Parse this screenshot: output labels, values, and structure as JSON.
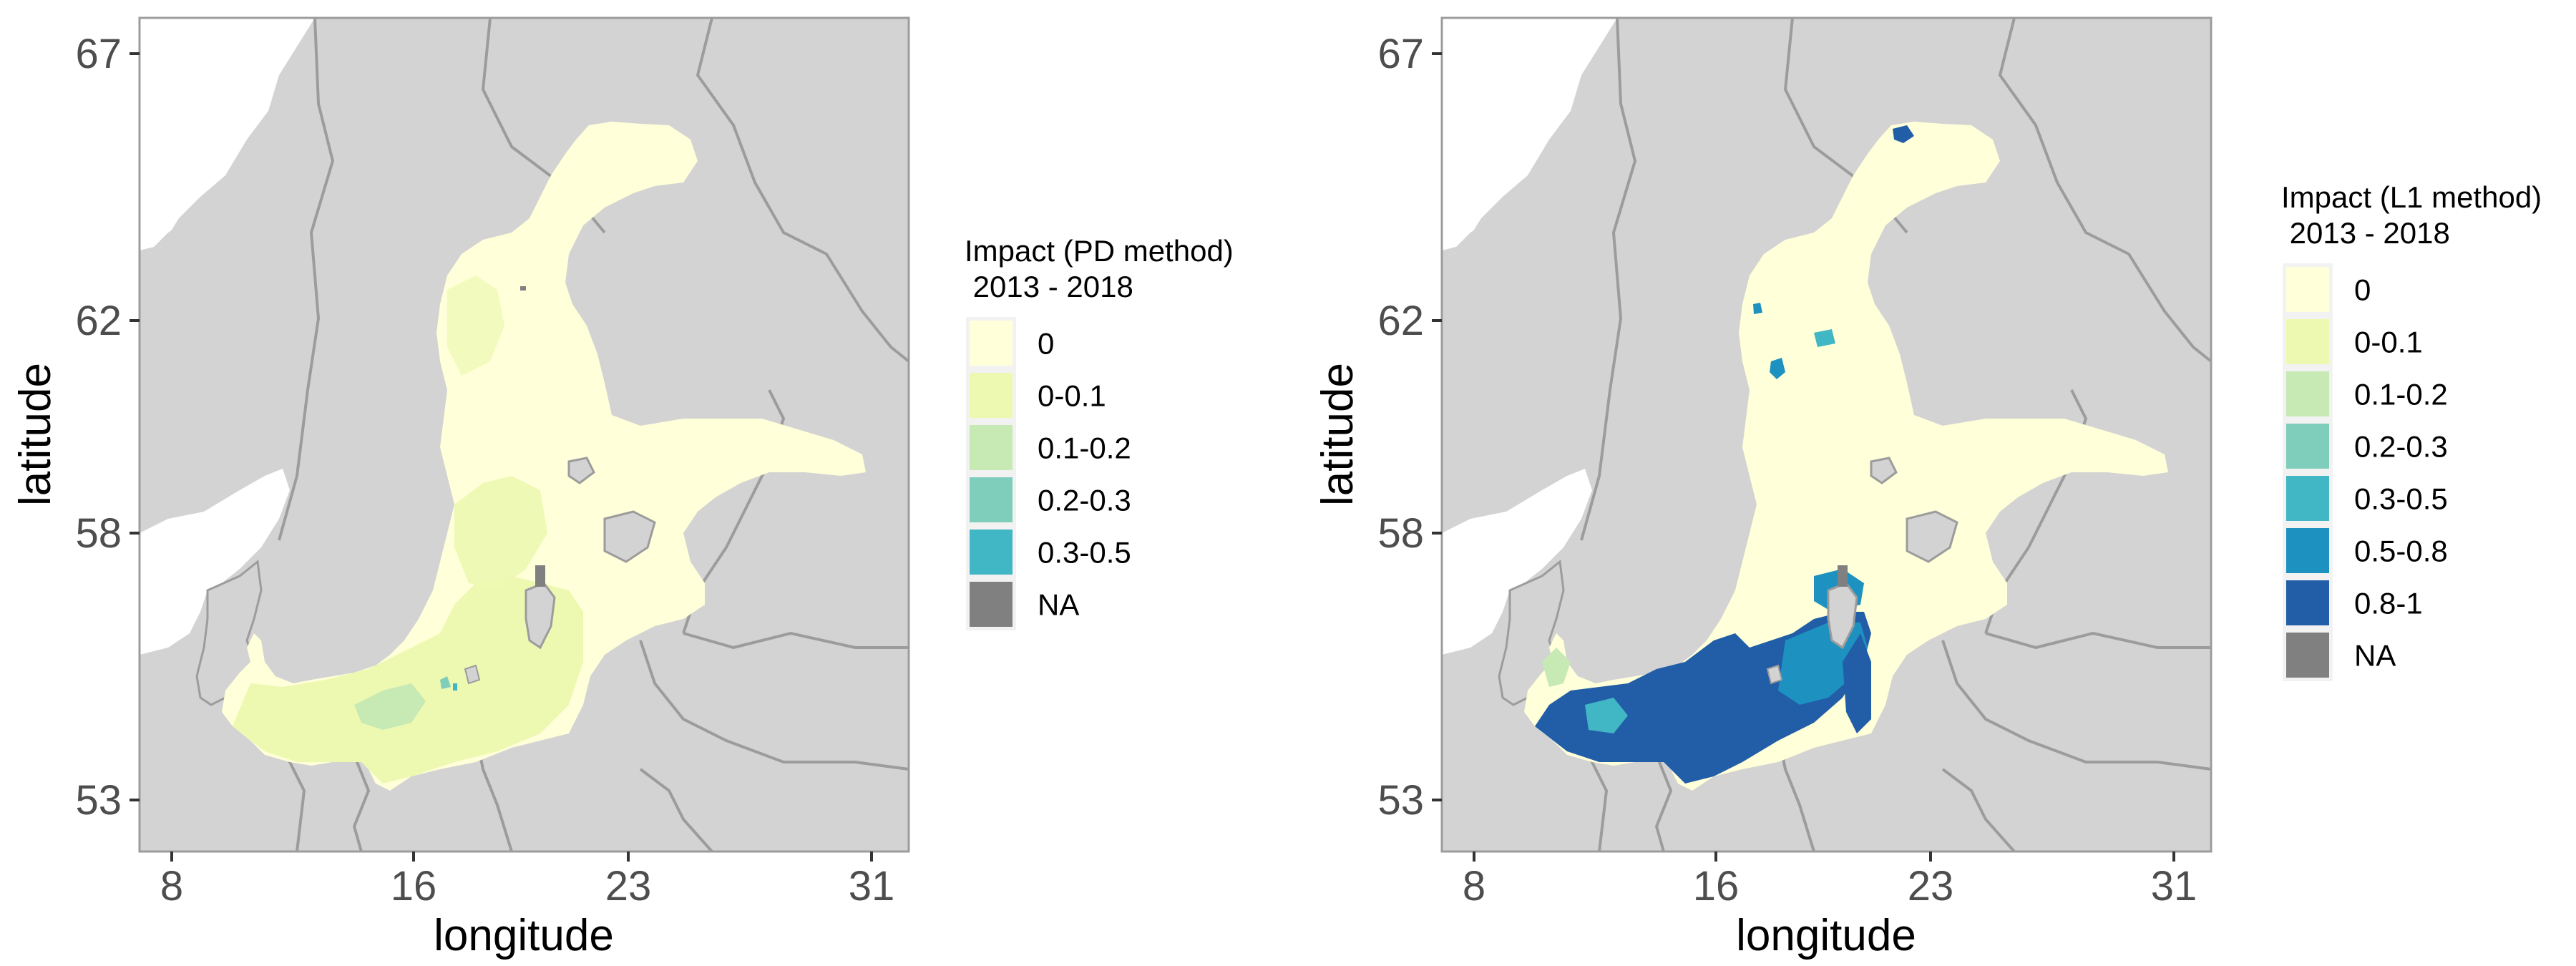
{
  "colors": {
    "land": "#d3d3d3",
    "border": "#9c9c9c",
    "sea_white": "#ffffff",
    "na": "#808080",
    "legend_bg": "#f2f2f2"
  },
  "panels": [
    {
      "id": "pd",
      "xlabel": "longitude",
      "ylabel": "latitude",
      "x_ticks": [
        "8",
        "16",
        "23",
        "31"
      ],
      "y_ticks": [
        "67",
        "62",
        "58",
        "53"
      ],
      "legend_title_line1": "Impact (PD method)",
      "legend_title_line2": " 2013 - 2018",
      "legend": [
        {
          "label": "0",
          "color": "#ffffd9"
        },
        {
          "label": "0-0.1",
          "color": "#edf8b1"
        },
        {
          "label": "0.1-0.2",
          "color": "#c7e9b4"
        },
        {
          "label": "0.2-0.3",
          "color": "#7fcdbb"
        },
        {
          "label": "0.3-0.5",
          "color": "#41b6c4"
        },
        {
          "label": "NA",
          "color": "#808080"
        }
      ]
    },
    {
      "id": "l1",
      "xlabel": "longitude",
      "ylabel": "latitude",
      "x_ticks": [
        "8",
        "16",
        "23",
        "31"
      ],
      "y_ticks": [
        "67",
        "62",
        "58",
        "53"
      ],
      "legend_title_line1": "Impact (L1 method)",
      "legend_title_line2": " 2013 - 2018",
      "legend": [
        {
          "label": "0",
          "color": "#ffffd9"
        },
        {
          "label": "0-0.1",
          "color": "#edf8b1"
        },
        {
          "label": "0.1-0.2",
          "color": "#c7e9b4"
        },
        {
          "label": "0.2-0.3",
          "color": "#7fcdbb"
        },
        {
          "label": "0.3-0.5",
          "color": "#41b6c4"
        },
        {
          "label": "0.5-0.8",
          "color": "#1d91c0"
        },
        {
          "label": "0.8-1",
          "color": "#225ea8"
        },
        {
          "label": "NA",
          "color": "#808080"
        }
      ]
    }
  ]
}
